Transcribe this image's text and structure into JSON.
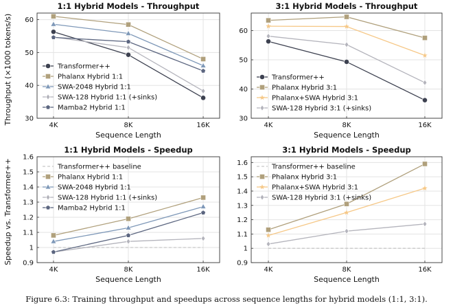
{
  "shared_ylabels": {
    "throughput": "Throughput (×1000 tokens/s)",
    "speedup": "Speedup vs. Transformer++"
  },
  "caption": "Figure 6.3: Training throughput and speedups across sequence lengths for hybrid models (1:1, 3:1).",
  "colors": {
    "transformer": "#3d4150",
    "phalanx": "#b0a07c",
    "swa2048": "#7e98b8",
    "swa128": "#b4b4bc",
    "mamba2": "#5c6680",
    "phalanx_swa": "#f6c887",
    "baseline": "#c8c8c8"
  },
  "chart_data": [
    {
      "type": "line",
      "title": "1:1 Hybrid Models - Throughput",
      "xlabel": "Sequence Length",
      "ylabel": "Throughput (×1000 tokens/s)",
      "categories": [
        "4K",
        "8K",
        "16K"
      ],
      "ylim": [
        30,
        62
      ],
      "yticks": [
        30,
        40,
        50,
        60
      ],
      "grid": true,
      "legend": "bottom-left",
      "series": [
        {
          "name": "Transformer++",
          "values": [
            56.3,
            49.3,
            36.2
          ],
          "color": "#3d4150",
          "marker": "circle"
        },
        {
          "name": "Phalanx Hybrid 1:1",
          "values": [
            61.0,
            58.5,
            48.0
          ],
          "color": "#b0a07c",
          "marker": "square"
        },
        {
          "name": "SWA-2048 Hybrid 1:1",
          "values": [
            58.6,
            55.8,
            46.0
          ],
          "color": "#7e98b8",
          "marker": "triangle"
        },
        {
          "name": "SWA-128 Hybrid 1:1 (+sinks)",
          "values": [
            54.7,
            51.5,
            38.3
          ],
          "color": "#b4b4bc",
          "marker": "diamond"
        },
        {
          "name": "Mamba2 Hybrid 1:1",
          "values": [
            54.6,
            53.3,
            44.4
          ],
          "color": "#5c6680",
          "marker": "pentagon"
        }
      ]
    },
    {
      "type": "line",
      "title": "3:1 Hybrid Models - Throughput",
      "xlabel": "Sequence Length",
      "ylabel": "",
      "categories": [
        "4K",
        "8K",
        "16K"
      ],
      "ylim": [
        30,
        66
      ],
      "yticks": [
        30,
        40,
        50,
        60
      ],
      "grid": true,
      "legend": "bottom-left",
      "series": [
        {
          "name": "Transformer++",
          "values": [
            56.3,
            49.3,
            36.2
          ],
          "color": "#3d4150",
          "marker": "circle"
        },
        {
          "name": "Phalanx Hybrid 3:1",
          "values": [
            63.5,
            64.7,
            57.5
          ],
          "color": "#b0a07c",
          "marker": "square"
        },
        {
          "name": "Phalanx+SWA Hybrid 3:1",
          "values": [
            61.5,
            61.4,
            51.5
          ],
          "color": "#f6c887",
          "marker": "star"
        },
        {
          "name": "SWA-128 Hybrid 3:1 (+sinks)",
          "values": [
            58.1,
            55.2,
            42.2
          ],
          "color": "#b4b4bc",
          "marker": "diamond"
        }
      ]
    },
    {
      "type": "line",
      "title": "1:1 Hybrid Models - Speedup",
      "xlabel": "Sequence Length",
      "ylabel": "Speedup vs. Transformer++",
      "categories": [
        "4K",
        "8K",
        "16K"
      ],
      "ylim": [
        0.9,
        1.6
      ],
      "yticks": [
        "0.9",
        "1",
        "1.1",
        "1.2",
        "1.3",
        "1.4",
        "1.5",
        "1.6"
      ],
      "grid": true,
      "legend": "top-left",
      "series": [
        {
          "name": "Transformer++ baseline",
          "values": [
            1.0,
            1.0,
            1.0
          ],
          "color": "#c8c8c8",
          "marker": "none",
          "dashed": true
        },
        {
          "name": "Phalanx Hybrid 1:1",
          "values": [
            1.08,
            1.19,
            1.33
          ],
          "color": "#b0a07c",
          "marker": "square"
        },
        {
          "name": "SWA-2048 Hybrid 1:1",
          "values": [
            1.04,
            1.13,
            1.27
          ],
          "color": "#7e98b8",
          "marker": "triangle"
        },
        {
          "name": "SWA-128 Hybrid 1:1 (+sinks)",
          "values": [
            0.97,
            1.04,
            1.06
          ],
          "color": "#b4b4bc",
          "marker": "diamond"
        },
        {
          "name": "Mamba2 Hybrid 1:1",
          "values": [
            0.97,
            1.08,
            1.23
          ],
          "color": "#5c6680",
          "marker": "pentagon"
        }
      ]
    },
    {
      "type": "line",
      "title": "3:1 Hybrid Models - Speedup",
      "xlabel": "Sequence Length",
      "ylabel": "",
      "categories": [
        "4K",
        "8K",
        "16K"
      ],
      "ylim": [
        0.9,
        1.64
      ],
      "yticks": [
        "0.9",
        "1",
        "1.1",
        "1.2",
        "1.3",
        "1.4",
        "1.5",
        "1.6"
      ],
      "grid": true,
      "legend": "top-left",
      "series": [
        {
          "name": "Transformer++ baseline",
          "values": [
            1.0,
            1.0,
            1.0
          ],
          "color": "#c8c8c8",
          "marker": "none",
          "dashed": true
        },
        {
          "name": "Phalanx Hybrid 3:1",
          "values": [
            1.13,
            1.31,
            1.59
          ],
          "color": "#b0a07c",
          "marker": "square"
        },
        {
          "name": "Phalanx+SWA Hybrid 3:1",
          "values": [
            1.09,
            1.25,
            1.42
          ],
          "color": "#f6c887",
          "marker": "star"
        },
        {
          "name": "SWA-128 Hybrid 3:1 (+sinks)",
          "values": [
            1.03,
            1.12,
            1.17
          ],
          "color": "#b4b4bc",
          "marker": "diamond"
        }
      ]
    }
  ]
}
